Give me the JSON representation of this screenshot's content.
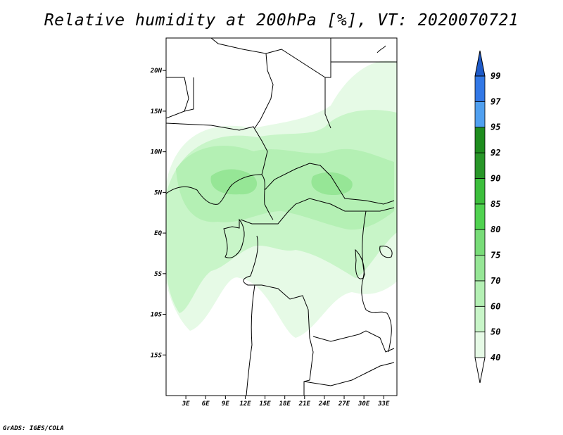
{
  "title": "Relative humidity at 200hPa [%], VT: 2020070721",
  "credit": "GrADS: IGES/COLA",
  "map": {
    "lon_range": [
      0,
      35
    ],
    "lat_range": [
      -20,
      24
    ],
    "x_ticks": [
      {
        "value": 3,
        "label": "3E"
      },
      {
        "value": 6,
        "label": "6E"
      },
      {
        "value": 9,
        "label": "9E"
      },
      {
        "value": 12,
        "label": "12E"
      },
      {
        "value": 15,
        "label": "15E"
      },
      {
        "value": 18,
        "label": "18E"
      },
      {
        "value": 21,
        "label": "21E"
      },
      {
        "value": 24,
        "label": "24E"
      },
      {
        "value": 27,
        "label": "27E"
      },
      {
        "value": 30,
        "label": "30E"
      },
      {
        "value": 33,
        "label": "33E"
      }
    ],
    "y_ticks": [
      {
        "value": 20,
        "label": "20N"
      },
      {
        "value": 15,
        "label": "15N"
      },
      {
        "value": 10,
        "label": "10N"
      },
      {
        "value": 5,
        "label": "5N"
      },
      {
        "value": 0,
        "label": "EQ"
      },
      {
        "value": -5,
        "label": "5S"
      },
      {
        "value": -10,
        "label": "10S"
      },
      {
        "value": -15,
        "label": "15S"
      }
    ]
  },
  "colorbar": {
    "levels": [
      "40",
      "50",
      "60",
      "70",
      "75",
      "80",
      "85",
      "90",
      "92",
      "95",
      "97",
      "99"
    ],
    "colors": [
      "#ffffff",
      "#e6fae6",
      "#c8f5c8",
      "#b4f0b4",
      "#96e696",
      "#78dc78",
      "#50d250",
      "#3cbe3c",
      "#289628",
      "#1e8c1e",
      "#50a0f0",
      "#3278e6",
      "#1e5ac8"
    ]
  }
}
